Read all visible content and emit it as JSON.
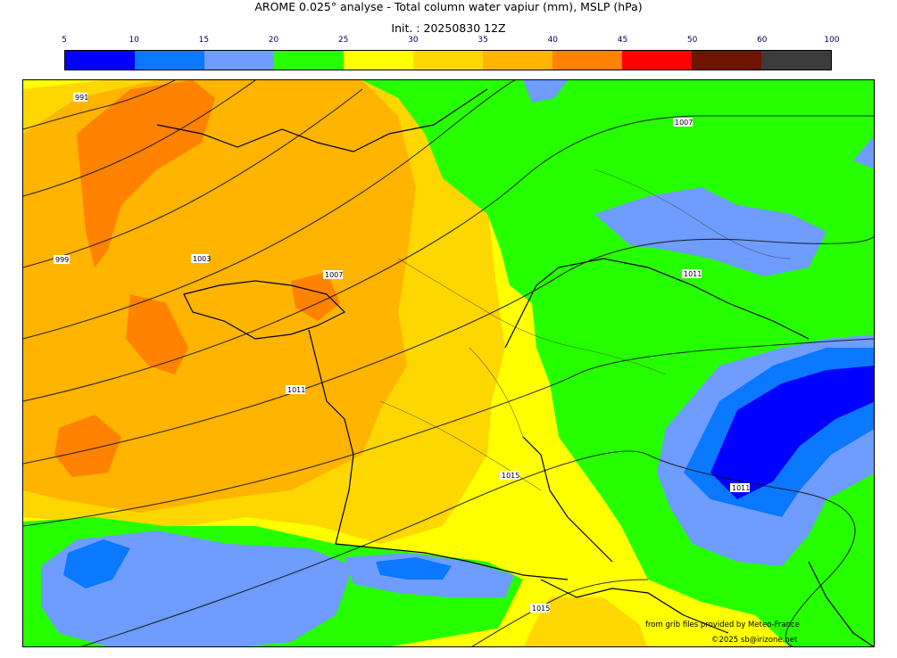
{
  "header": {
    "title": "AROME 0.025° analyse - Total column water vapiur (mm), MSLP (hPa)",
    "init": "Init. : 20250830 12Z"
  },
  "colorbar": {
    "ticks": [
      "5",
      "10",
      "15",
      "20",
      "25",
      "30",
      "35",
      "40",
      "45",
      "50",
      "60",
      "100"
    ],
    "colors": [
      "#0000ff",
      "#0a78ff",
      "#6e9cff",
      "#26ff00",
      "#ffff00",
      "#ffd700",
      "#ffb400",
      "#ff8200",
      "#ff0000",
      "#6e1400",
      "#3c3c3c"
    ]
  },
  "map": {
    "isobar_labels": [
      "991",
      "999",
      "1003",
      "1007",
      "1007",
      "1011",
      "1011",
      "1011",
      "1015",
      "1015"
    ]
  },
  "credits": {
    "source": "from grib files provided by Meteo-France",
    "copyright": "©2025 sb@irizone.net"
  }
}
